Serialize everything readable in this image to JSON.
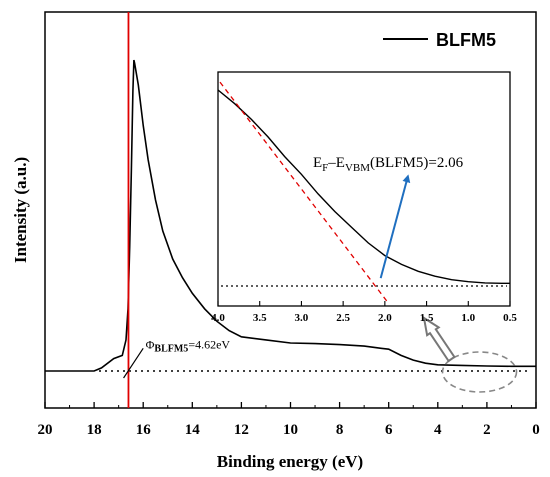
{
  "chart_data": {
    "main": {
      "type": "line",
      "xlabel": "Binding energy (eV)",
      "ylabel": "Intensity (a.u.)",
      "xlim": [
        20,
        0
      ],
      "x_reversed": true,
      "y_ticks_shown": false,
      "x_ticks": [
        "20",
        "18",
        "16",
        "14",
        "12",
        "10",
        "8",
        "6",
        "4",
        "2",
        "0"
      ],
      "legend": {
        "label": "BLFM5",
        "position": "top-right"
      },
      "series": [
        {
          "name": "BLFM5",
          "color": "#000000",
          "x": [
            20,
            18,
            17.7,
            17.2,
            16.85,
            16.7,
            16.62,
            16.55,
            16.48,
            16.42,
            16.38,
            16.35,
            16.2,
            16.0,
            15.8,
            15.5,
            15.2,
            14.8,
            14.4,
            14.0,
            13.5,
            13.0,
            12.5,
            12.0,
            11.0,
            10.0,
            9.0,
            8.0,
            7.0,
            6.5,
            6.0,
            5.5,
            5.0,
            4.5,
            4.0,
            3.0,
            2.0,
            1.0,
            0
          ],
          "y": [
            0.0,
            0.0,
            0.01,
            0.04,
            0.05,
            0.1,
            0.2,
            0.4,
            0.65,
            0.9,
            1.0,
            0.99,
            0.92,
            0.79,
            0.68,
            0.55,
            0.45,
            0.36,
            0.3,
            0.25,
            0.2,
            0.16,
            0.13,
            0.11,
            0.1,
            0.09,
            0.088,
            0.085,
            0.08,
            0.075,
            0.07,
            0.05,
            0.035,
            0.025,
            0.02,
            0.018,
            0.016,
            0.015,
            0.015
          ]
        }
      ],
      "vertical_marker": {
        "x": 16.6,
        "color": "#e00000"
      },
      "baseline": {
        "style": "dotted"
      },
      "annotation": {
        "phi": "Φ",
        "subscript": "BLFM5",
        "value": "=4.62eV"
      },
      "highlight": {
        "shape": "dashed-ellipse",
        "x_center": 2.3,
        "color": "#888888"
      }
    },
    "inset": {
      "type": "line",
      "xlim": [
        4.0,
        0.5
      ],
      "x_reversed": true,
      "x_ticks": [
        "4.0",
        "3.5",
        "3.0",
        "2.5",
        "2.0",
        "1.5",
        "1.0",
        "0.5"
      ],
      "series": [
        {
          "name": "BLFM5",
          "color": "#000000",
          "x": [
            4.0,
            3.8,
            3.6,
            3.4,
            3.2,
            3.0,
            2.8,
            2.6,
            2.4,
            2.2,
            2.0,
            1.8,
            1.6,
            1.4,
            1.2,
            1.0,
            0.8,
            0.6,
            0.5
          ],
          "y": [
            1.0,
            0.93,
            0.85,
            0.76,
            0.66,
            0.57,
            0.47,
            0.38,
            0.3,
            0.22,
            0.155,
            0.11,
            0.075,
            0.05,
            0.032,
            0.022,
            0.016,
            0.014,
            0.014
          ]
        }
      ],
      "fit_line": {
        "x0": 4.1,
        "x1": 1.95,
        "color": "#e00000",
        "style": "dashed"
      },
      "baseline": {
        "style": "dotted"
      },
      "annotation": {
        "text_ef": "E",
        "sub_f": "F",
        "text_dash": "–E",
        "sub_vbm": "VBM",
        "text_rest": "(BLFM5)=2.06",
        "arrow_color": "#1f6fc0"
      }
    }
  }
}
